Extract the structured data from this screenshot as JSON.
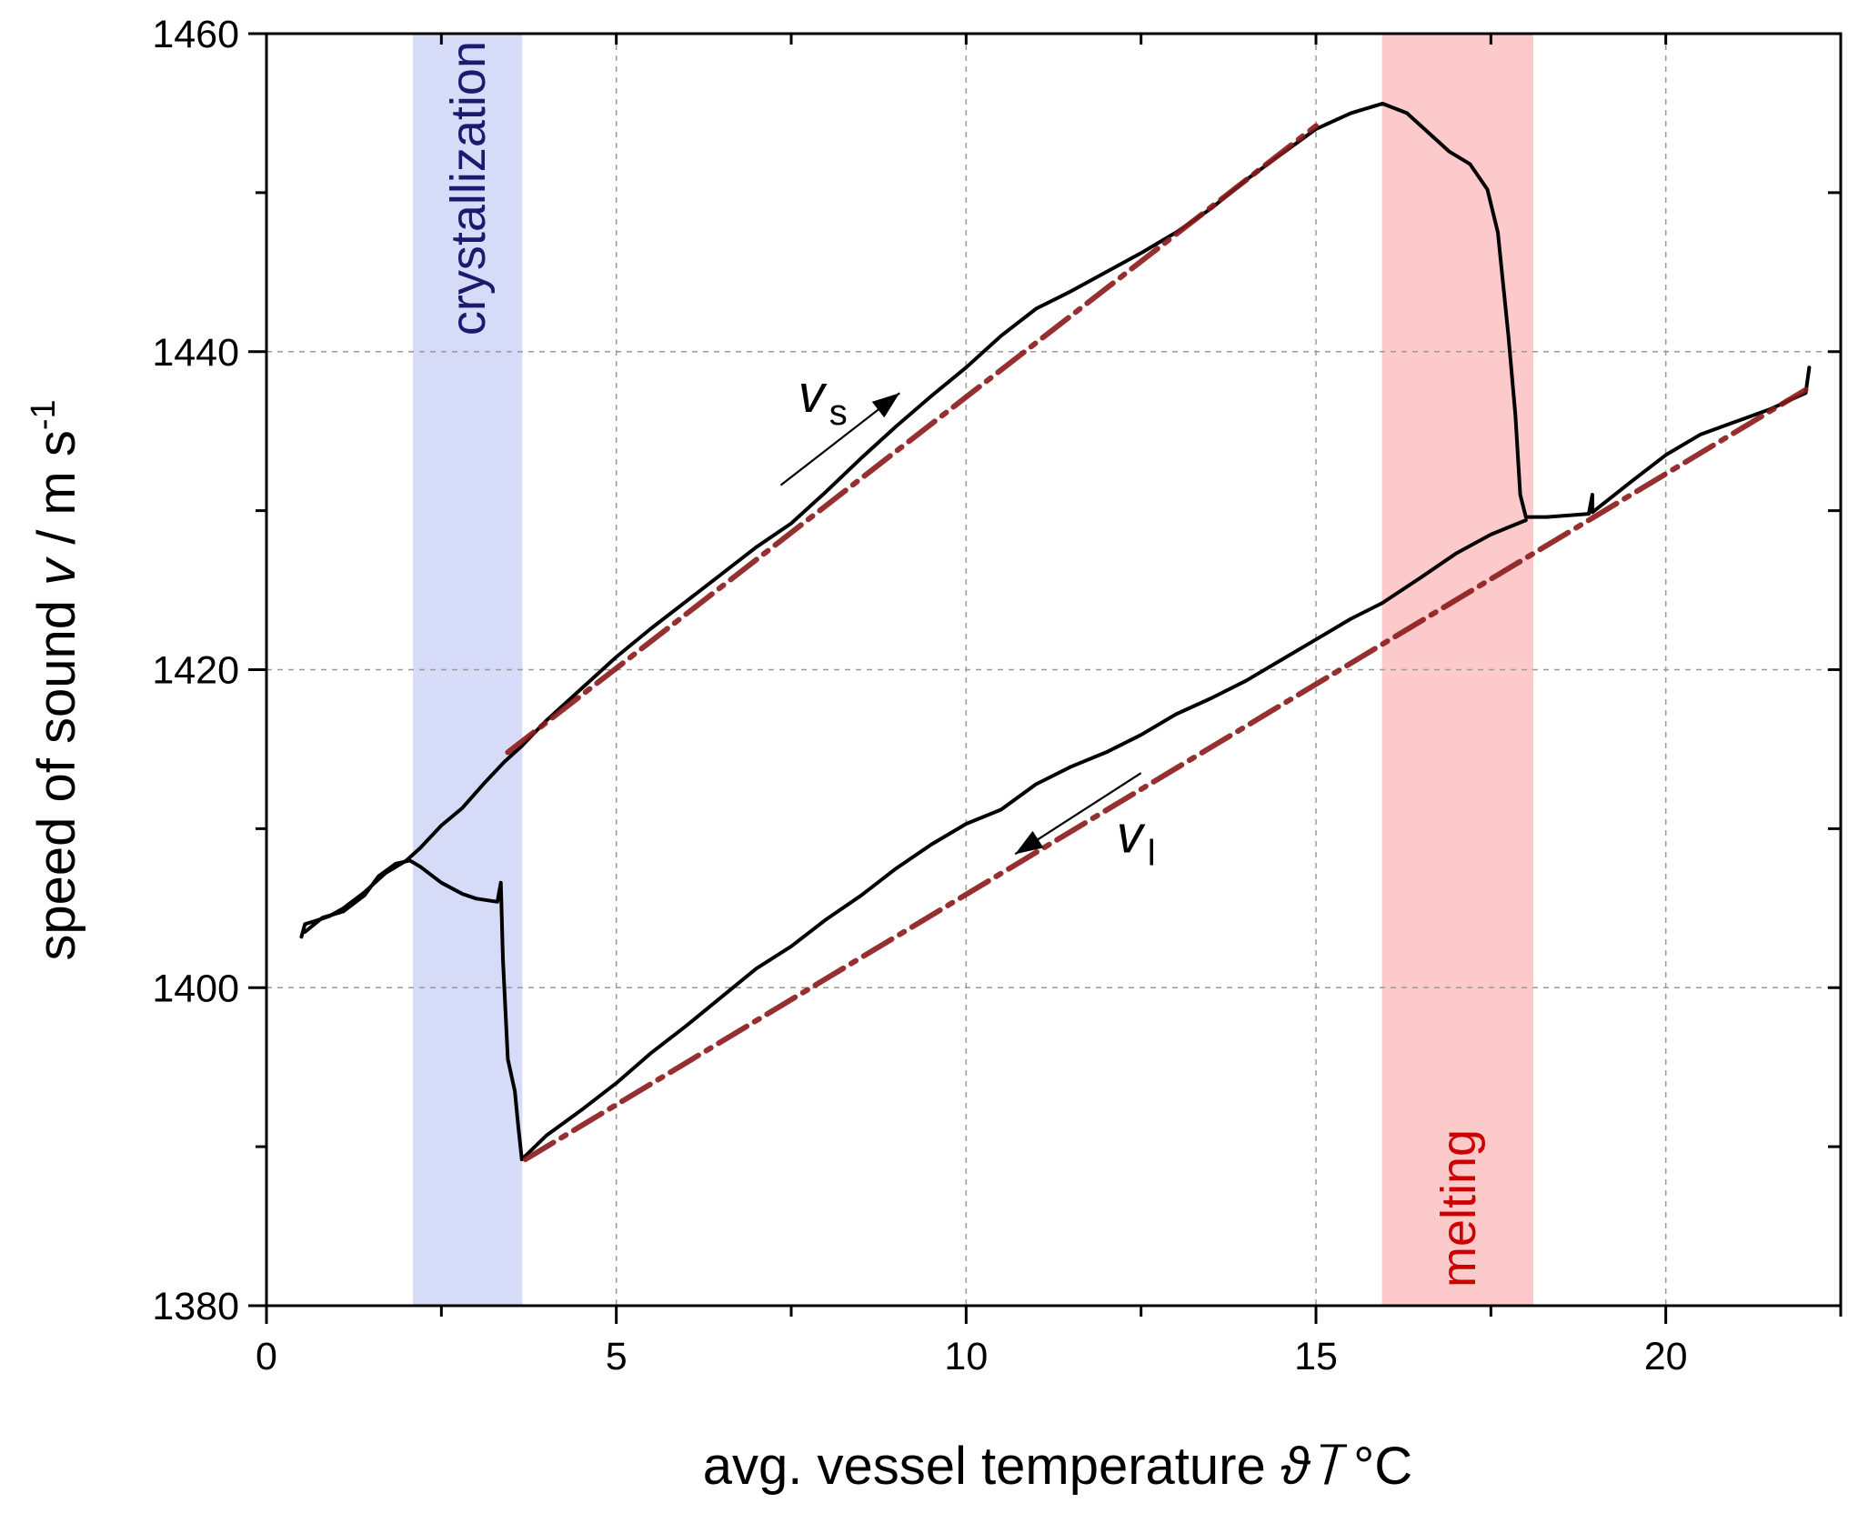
{
  "chart_data": {
    "type": "line",
    "xlabel": {
      "main": "avg. vessel temperature ",
      "symbol": "ϑ",
      "unit": "  /  °C"
    },
    "ylabel": {
      "main": "speed of sound ",
      "symbol": "v",
      "unit": "  /  m s",
      "unit_sup": "-1"
    },
    "xlim": [
      0,
      22.5
    ],
    "ylim": [
      1380,
      1460
    ],
    "x_major_ticks": [
      0,
      5,
      10,
      15,
      20
    ],
    "x_tick_labels": [
      "0",
      "5",
      "10",
      "15",
      "20"
    ],
    "y_major_ticks": [
      1380,
      1400,
      1420,
      1440,
      1460
    ],
    "y_tick_labels": [
      "1380",
      "1400",
      "1420",
      "1440",
      "1460"
    ],
    "x_minor_ticks": [
      2.5,
      7.5,
      12.5,
      17.5,
      22.5
    ],
    "y_minor_ticks": [
      1390,
      1410,
      1430,
      1450
    ],
    "grid": true,
    "bands": [
      {
        "label": "crystallization",
        "x": [
          2.1,
          3.65
        ],
        "color": "#d6dbf8",
        "text_color": "#1a1a6e"
      },
      {
        "label": "melting",
        "x": [
          15.95,
          18.1
        ],
        "color": "#fccaca",
        "text_color": "#cc0000"
      }
    ],
    "annotations": [
      {
        "text": "v",
        "sub": "s",
        "x": 7.6,
        "y": 1436.2,
        "arrow_from": [
          7.35,
          1431.6
        ],
        "arrow_to": [
          9.05,
          1437.4
        ]
      },
      {
        "text": "v",
        "sub": "l",
        "x": 12.15,
        "y": 1408.5,
        "arrow_from": [
          12.5,
          1413.5
        ],
        "arrow_to": [
          10.7,
          1408.4
        ]
      }
    ],
    "series": [
      {
        "style": "measured",
        "color": "#000000",
        "points": [
          [
            0.5,
            1403.2
          ],
          [
            0.55,
            1404.0
          ],
          [
            0.7,
            1404.2
          ],
          [
            0.9,
            1404.5
          ],
          [
            1.1,
            1405.0
          ],
          [
            1.4,
            1406.0
          ],
          [
            1.7,
            1407.2
          ],
          [
            2.0,
            1408.0
          ],
          [
            2.2,
            1408.8
          ],
          [
            2.5,
            1410.2
          ],
          [
            2.8,
            1411.3
          ],
          [
            3.1,
            1412.8
          ],
          [
            3.4,
            1414.2
          ],
          [
            3.65,
            1415.2
          ],
          [
            4.0,
            1416.8
          ],
          [
            4.5,
            1418.8
          ],
          [
            5.0,
            1420.8
          ],
          [
            5.5,
            1422.6
          ],
          [
            6.0,
            1424.3
          ],
          [
            6.5,
            1426.0
          ],
          [
            7.0,
            1427.7
          ],
          [
            7.5,
            1429.2
          ],
          [
            8.0,
            1431.2
          ],
          [
            8.5,
            1433.3
          ],
          [
            9.0,
            1435.3
          ],
          [
            9.5,
            1437.2
          ],
          [
            10.0,
            1439.0
          ],
          [
            10.5,
            1441.0
          ],
          [
            11.0,
            1442.7
          ],
          [
            11.5,
            1443.8
          ],
          [
            12.0,
            1445.0
          ],
          [
            12.5,
            1446.2
          ],
          [
            13.0,
            1447.5
          ],
          [
            13.5,
            1449.0
          ],
          [
            14.0,
            1450.8
          ],
          [
            14.5,
            1452.4
          ],
          [
            15.0,
            1454.0
          ],
          [
            15.5,
            1455.0
          ],
          [
            15.95,
            1455.6
          ],
          [
            16.3,
            1455.0
          ],
          [
            16.6,
            1453.8
          ],
          [
            16.9,
            1452.6
          ],
          [
            17.2,
            1451.8
          ],
          [
            17.45,
            1450.2
          ],
          [
            17.6,
            1447.5
          ],
          [
            17.75,
            1441.0
          ],
          [
            17.85,
            1436.0
          ],
          [
            17.92,
            1431.0
          ],
          [
            18.0,
            1429.6
          ],
          [
            18.3,
            1429.6
          ],
          [
            18.6,
            1429.7
          ],
          [
            18.9,
            1429.8
          ],
          [
            18.95,
            1431.0
          ],
          [
            18.95,
            1429.9
          ],
          [
            19.5,
            1431.8
          ],
          [
            20.0,
            1433.5
          ],
          [
            20.5,
            1434.8
          ],
          [
            21.0,
            1435.6
          ],
          [
            21.5,
            1436.4
          ],
          [
            22.0,
            1437.4
          ],
          [
            22.05,
            1439.0
          ]
        ]
      },
      {
        "style": "measured",
        "color": "#000000",
        "points": [
          [
            0.55,
            1403.5
          ],
          [
            0.8,
            1404.4
          ],
          [
            1.1,
            1404.8
          ],
          [
            1.4,
            1405.8
          ],
          [
            1.6,
            1407.0
          ],
          [
            1.85,
            1407.8
          ],
          [
            2.05,
            1408.0
          ],
          [
            2.2,
            1407.6
          ],
          [
            2.5,
            1406.6
          ],
          [
            2.8,
            1405.9
          ],
          [
            3.0,
            1405.6
          ],
          [
            3.3,
            1405.4
          ],
          [
            3.35,
            1406.6
          ],
          [
            3.38,
            1401.8
          ],
          [
            3.45,
            1395.5
          ],
          [
            3.55,
            1393.5
          ],
          [
            3.6,
            1391.2
          ],
          [
            3.65,
            1389.2
          ],
          [
            4.0,
            1390.7
          ],
          [
            4.5,
            1392.3
          ],
          [
            5.0,
            1394.0
          ],
          [
            5.5,
            1395.9
          ],
          [
            6.0,
            1397.6
          ],
          [
            6.5,
            1399.4
          ],
          [
            7.0,
            1401.2
          ],
          [
            7.5,
            1402.6
          ],
          [
            8.0,
            1404.3
          ],
          [
            8.5,
            1405.8
          ],
          [
            9.0,
            1407.5
          ],
          [
            9.5,
            1409.0
          ],
          [
            10.0,
            1410.3
          ],
          [
            10.5,
            1411.2
          ],
          [
            11.0,
            1412.8
          ],
          [
            11.5,
            1413.9
          ],
          [
            12.0,
            1414.8
          ],
          [
            12.5,
            1415.9
          ],
          [
            13.0,
            1417.2
          ],
          [
            13.5,
            1418.2
          ],
          [
            14.0,
            1419.3
          ],
          [
            14.5,
            1420.6
          ],
          [
            15.0,
            1421.9
          ],
          [
            15.5,
            1423.2
          ],
          [
            15.95,
            1424.2
          ],
          [
            16.5,
            1425.8
          ],
          [
            17.0,
            1427.3
          ],
          [
            17.5,
            1428.5
          ],
          [
            18.0,
            1429.4
          ]
        ]
      },
      {
        "style": "fit",
        "color": "#8b1a1a",
        "points": [
          [
            3.45,
            1414.8
          ],
          [
            15.0,
            1454.2
          ]
        ]
      },
      {
        "style": "fit",
        "color": "#8b1a1a",
        "points": [
          [
            3.7,
            1389.2
          ],
          [
            22.0,
            1437.6
          ]
        ]
      }
    ]
  }
}
